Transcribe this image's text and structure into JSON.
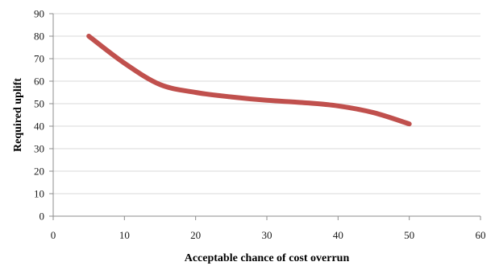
{
  "chart_data": {
    "type": "line",
    "title": "",
    "xlabel": "Acceptable chance of cost overrun",
    "ylabel": "Required uplift",
    "xlim": [
      0,
      60
    ],
    "ylim": [
      0,
      90
    ],
    "x_ticks": [
      0,
      10,
      20,
      30,
      40,
      50,
      60
    ],
    "y_ticks": [
      0,
      10,
      20,
      30,
      40,
      50,
      60,
      70,
      80,
      90
    ],
    "grid": "horizontal",
    "legend": "none",
    "series": [
      {
        "color": "#c0504d",
        "x": [
          5,
          10,
          15,
          20,
          25,
          30,
          35,
          40,
          45,
          50
        ],
        "y": [
          80,
          68,
          58.5,
          55,
          53,
          51.5,
          50.5,
          49,
          46,
          41
        ]
      }
    ]
  }
}
